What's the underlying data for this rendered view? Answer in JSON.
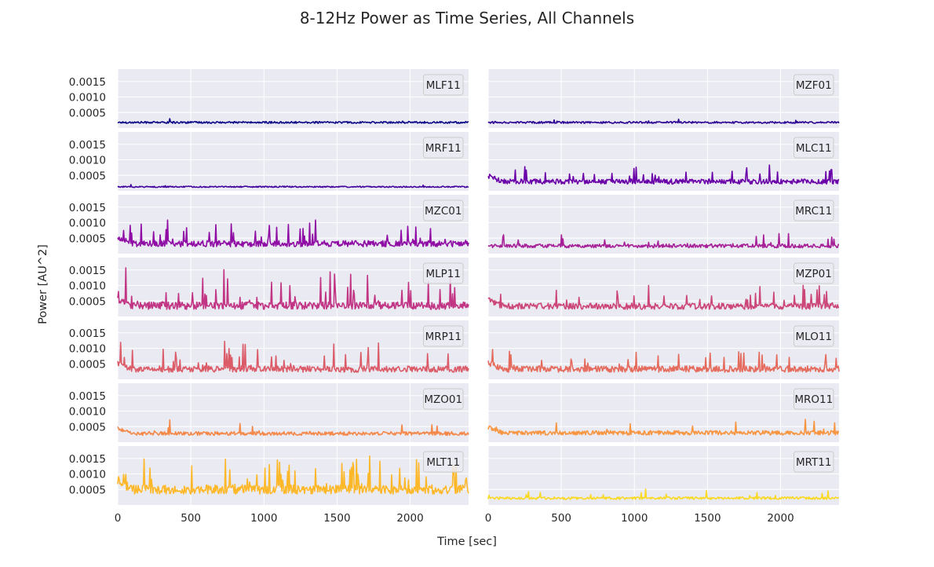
{
  "chart_data": {
    "type": "line",
    "title": "8-12Hz Power as Time Series, All Channels",
    "xlabel": "Time [sec]",
    "ylabel": "Power [AU^2]",
    "xlim": [
      0,
      2400
    ],
    "ylim": [
      0,
      0.0019
    ],
    "xticks": [
      0,
      500,
      1000,
      1500,
      2000
    ],
    "xtick_labels": [
      "0",
      "500",
      "1000",
      "1500",
      "2000"
    ],
    "yticks": [
      0.0005,
      0.001,
      0.0015
    ],
    "ytick_labels": [
      "0.0005",
      "0.0010",
      "0.0015"
    ],
    "grid": true,
    "legend_placement": "upper-right",
    "layout": "7 rows x 2 columns, shared axes",
    "panels": [
      {
        "name": "MLF11",
        "color": "#0d0887",
        "col": 0,
        "row": 0,
        "base": 0.00018,
        "noise": 3e-05,
        "peak_rate": 0.01,
        "peak_max": 0.00015,
        "values": []
      },
      {
        "name": "MZF01",
        "color": "#2c0594",
        "col": 1,
        "row": 0,
        "base": 0.00018,
        "noise": 3e-05,
        "peak_rate": 0.01,
        "peak_max": 0.00012,
        "values": []
      },
      {
        "name": "MRF11",
        "color": "#41049d",
        "col": 0,
        "row": 1,
        "base": 0.00013,
        "noise": 2e-05,
        "peak_rate": 0.01,
        "peak_max": 8e-05,
        "values": []
      },
      {
        "name": "MLC11",
        "color": "#6a00a8",
        "col": 1,
        "row": 1,
        "base": 0.0003,
        "noise": 8e-05,
        "peak_rate": 0.05,
        "peak_max": 0.0005,
        "values": []
      },
      {
        "name": "MZC01",
        "color": "#8f0da4",
        "col": 0,
        "row": 2,
        "base": 0.00032,
        "noise": 0.0001,
        "peak_rate": 0.08,
        "peak_max": 0.0007,
        "values": []
      },
      {
        "name": "MRC11",
        "color": "#a62098",
        "col": 1,
        "row": 2,
        "base": 0.00025,
        "noise": 6e-05,
        "peak_rate": 0.05,
        "peak_max": 0.0004,
        "values": []
      },
      {
        "name": "MLP11",
        "color": "#c13584",
        "col": 0,
        "row": 3,
        "base": 0.00035,
        "noise": 0.00012,
        "peak_rate": 0.1,
        "peak_max": 0.0011,
        "values": []
      },
      {
        "name": "MZP01",
        "color": "#cc4778",
        "col": 1,
        "row": 3,
        "base": 0.00033,
        "noise": 0.0001,
        "peak_rate": 0.07,
        "peak_max": 0.0006,
        "values": []
      },
      {
        "name": "MRP11",
        "color": "#db5c68",
        "col": 0,
        "row": 4,
        "base": 0.00033,
        "noise": 0.0001,
        "peak_rate": 0.07,
        "peak_max": 0.0008,
        "values": []
      },
      {
        "name": "MLO11",
        "color": "#e56b5d",
        "col": 1,
        "row": 4,
        "base": 0.00033,
        "noise": 0.0001,
        "peak_rate": 0.06,
        "peak_max": 0.0006,
        "values": []
      },
      {
        "name": "MZO01",
        "color": "#f48849",
        "col": 0,
        "row": 5,
        "base": 0.00028,
        "noise": 6e-05,
        "peak_rate": 0.03,
        "peak_max": 0.0004,
        "values": []
      },
      {
        "name": "MRO11",
        "color": "#f89540",
        "col": 1,
        "row": 5,
        "base": 0.0003,
        "noise": 7e-05,
        "peak_rate": 0.03,
        "peak_max": 0.0004,
        "values": []
      },
      {
        "name": "MLT11",
        "color": "#fdb82a",
        "col": 0,
        "row": 6,
        "base": 0.0005,
        "noise": 0.00015,
        "peak_rate": 0.12,
        "peak_max": 0.0012,
        "values": []
      },
      {
        "name": "MRT11",
        "color": "#f9d924",
        "col": 1,
        "row": 6,
        "base": 0.00022,
        "noise": 4e-05,
        "peak_rate": 0.04,
        "peak_max": 0.0003,
        "values": []
      }
    ]
  }
}
